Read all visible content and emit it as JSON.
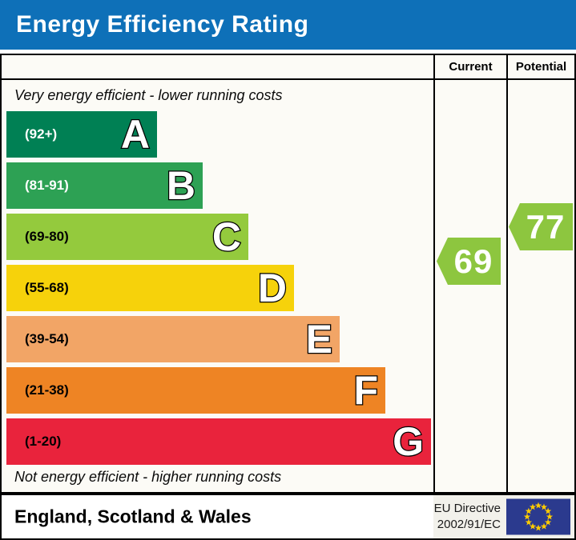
{
  "header": {
    "title": "Energy Efficiency Rating",
    "bar_color": "#0e70b8"
  },
  "chart_data": {
    "type": "bar",
    "orientation": "horizontal",
    "title": "Energy Efficiency Rating",
    "caption_top": "Very energy efficient - lower running costs",
    "caption_bottom": "Not energy efficient - higher running costs",
    "columns": {
      "current": "Current",
      "potential": "Potential"
    },
    "scale": [
      1,
      100
    ],
    "bands": [
      {
        "letter": "A",
        "range_label": "(92+)",
        "min": 92,
        "max": 100,
        "color": "#008054",
        "label_color": "#ffffff"
      },
      {
        "letter": "B",
        "range_label": "(81-91)",
        "min": 81,
        "max": 91,
        "color": "#2da154",
        "label_color": "#ffffff"
      },
      {
        "letter": "C",
        "range_label": "(69-80)",
        "min": 69,
        "max": 80,
        "color": "#94ca3d",
        "label_color": "#000000"
      },
      {
        "letter": "D",
        "range_label": "(55-68)",
        "min": 55,
        "max": 68,
        "color": "#f6d20b",
        "label_color": "#000000"
      },
      {
        "letter": "E",
        "range_label": "(39-54)",
        "min": 39,
        "max": 54,
        "color": "#f2a566",
        "label_color": "#000000"
      },
      {
        "letter": "F",
        "range_label": "(21-38)",
        "min": 21,
        "max": 38,
        "color": "#ee8424",
        "label_color": "#000000"
      },
      {
        "letter": "G",
        "range_label": "(1-20)",
        "min": 1,
        "max": 20,
        "color": "#e9233c",
        "label_color": "#000000"
      }
    ],
    "current": {
      "value": 69,
      "band": "C",
      "color": "#8dc63f"
    },
    "potential": {
      "value": 77,
      "band": "C",
      "color": "#8dc63f"
    }
  },
  "footer": {
    "region": "England, Scotland & Wales",
    "directive": [
      "EU Directive",
      "2002/91/EC"
    ],
    "flag_colors": {
      "field": "#2b3a8e",
      "stars": "#ffcc00"
    }
  }
}
